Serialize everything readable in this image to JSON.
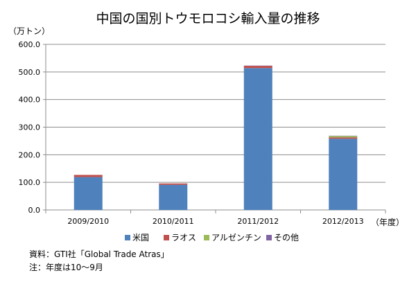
{
  "chart_data": {
    "type": "bar",
    "stacked": true,
    "title": "中国の国別トウモロコシ輸入量の推移",
    "ylabel": "（万トン）",
    "xlabel": "（年度）",
    "categories": [
      "2009/2010",
      "2010/2011",
      "2011/2012",
      "2012/2013"
    ],
    "series": [
      {
        "name": "米国",
        "color": "#4F81BD",
        "values": [
          119.0,
          91.0,
          514.0,
          258.0
        ]
      },
      {
        "name": "ラオス",
        "color": "#C0504D",
        "values": [
          8.0,
          5.0,
          8.0,
          5.0
        ]
      },
      {
        "name": "アルゼンチン",
        "color": "#9BBB59",
        "values": [
          0,
          0,
          0,
          5.0
        ]
      },
      {
        "name": "その他",
        "color": "#8064A2",
        "values": [
          0,
          0,
          1.0,
          1.0
        ]
      }
    ],
    "ylim": [
      0,
      600
    ],
    "yticks": [
      "0.0",
      "100.0",
      "200.0",
      "300.0",
      "400.0",
      "500.0",
      "600.0"
    ],
    "grid": true,
    "legend_position": "bottom"
  },
  "footer": {
    "source": "資料：GTI社「Global Trade Atras」",
    "note": "注：年度は10～9月"
  }
}
